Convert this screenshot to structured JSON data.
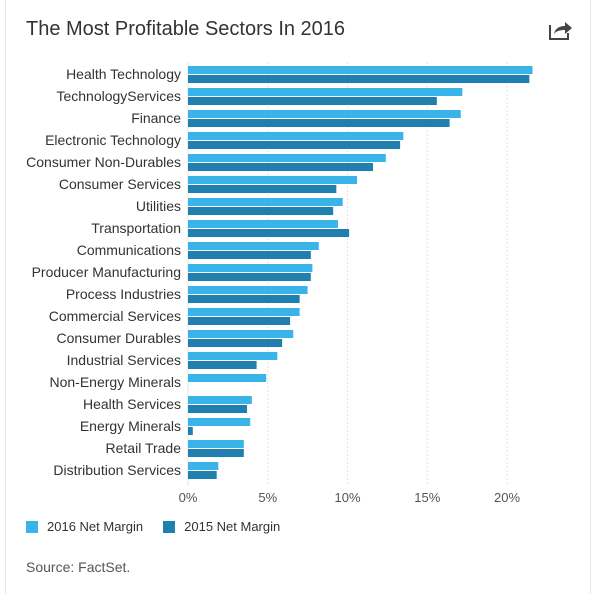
{
  "header": {
    "title": "The Most Profitable Sectors In 2016",
    "share_icon": "share-icon"
  },
  "colors": {
    "series_2016": "#3ab4e8",
    "series_2015": "#1f7fae",
    "grid": "#e3e3e3",
    "text": "#333333"
  },
  "chart_data": {
    "type": "bar",
    "orientation": "horizontal",
    "title": "The Most Profitable Sectors In 2016",
    "categories": [
      "Health Technology",
      "TechnologyServices",
      "Finance",
      "Electronic Technology",
      "Consumer Non-Durables",
      "Consumer Services",
      "Utilities",
      "Transportation",
      "Communications",
      "Producer Manufacturing",
      "Process Industries",
      "Commercial Services",
      "Consumer Durables",
      "Industrial Services",
      "Non-Energy Minerals",
      "Health Services",
      "Energy Minerals",
      "Retail Trade",
      "Distribution Services"
    ],
    "series": [
      {
        "name": "2016 Net Margin",
        "values": [
          21.6,
          17.2,
          17.1,
          13.5,
          12.4,
          10.6,
          9.7,
          9.4,
          8.2,
          7.8,
          7.5,
          7.0,
          6.6,
          5.6,
          4.9,
          4.0,
          3.9,
          3.5,
          1.9
        ]
      },
      {
        "name": "2015 Net Margin",
        "values": [
          21.4,
          15.6,
          16.4,
          13.3,
          11.6,
          9.3,
          9.1,
          10.1,
          7.7,
          7.7,
          7.0,
          6.4,
          5.9,
          4.3,
          0.0,
          3.7,
          0.3,
          3.5,
          1.8
        ]
      }
    ],
    "xlim": [
      0,
      22
    ],
    "x_ticks": [
      0,
      5,
      10,
      15,
      20
    ],
    "x_tick_labels": [
      "0%",
      "5%",
      "10%",
      "15%",
      "20%"
    ],
    "grid": true,
    "legend_position": "bottom-left"
  },
  "legend": {
    "items": [
      "2016 Net Margin",
      "2015 Net Margin"
    ]
  },
  "footer": {
    "source": "Source: FactSet."
  }
}
